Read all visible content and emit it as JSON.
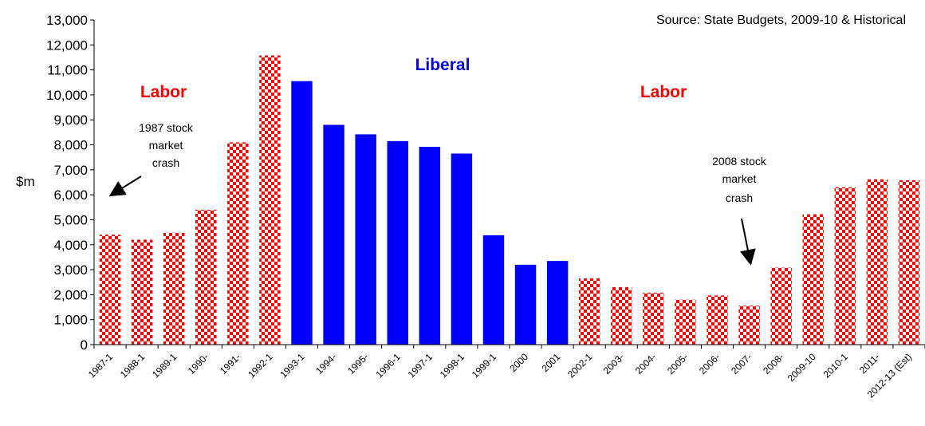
{
  "chart_data": {
    "type": "bar",
    "source": "Source: State Budgets, 2009-10 & Historical",
    "ylabel": "$m",
    "xlabel": "",
    "ylim": [
      0,
      13000
    ],
    "y_ticks": [
      "0",
      "1,000",
      "2,000",
      "3,000",
      "4,000",
      "5,000",
      "6,000",
      "7,000",
      "8,000",
      "9,000",
      "10,000",
      "11,000",
      "12,000",
      "13,000"
    ],
    "grid": false,
    "categories": [
      "1987-1",
      "1988-1",
      "1989-1",
      "1990-",
      "1991-",
      "1992-1",
      "1993-1",
      "1994-",
      "1995-",
      "1996-1",
      "1997-1",
      "1998-1",
      "1999-1",
      "2000",
      "2001",
      "2002-1",
      "2003-",
      "2004-",
      "2005-",
      "2006-",
      "2007-",
      "2008-",
      "2009-10",
      "2010-1",
      "2011-",
      "2012-13 (Est)"
    ],
    "values": [
      4400,
      4200,
      4480,
      5400,
      8100,
      11580,
      10550,
      8800,
      8420,
      8150,
      7920,
      7650,
      4380,
      3200,
      3350,
      2650,
      2300,
      2080,
      1800,
      1970,
      1560,
      3080,
      5220,
      6300,
      6620,
      6580
    ],
    "party": [
      "labor",
      "labor",
      "labor",
      "labor",
      "labor",
      "labor",
      "liberal",
      "liberal",
      "liberal",
      "liberal",
      "liberal",
      "liberal",
      "liberal",
      "liberal",
      "liberal",
      "labor",
      "labor",
      "labor",
      "labor",
      "labor",
      "labor",
      "labor",
      "labor",
      "labor",
      "labor",
      "labor"
    ],
    "colors": {
      "labor": "#ff0000",
      "liberal": "#0000ff"
    },
    "party_labels": [
      {
        "text": "Labor",
        "color": "#ff0000"
      },
      {
        "text": "Liberal",
        "color": "#0000ff"
      },
      {
        "text": "Labor",
        "color": "#ff0000"
      }
    ],
    "annotations": [
      {
        "lines": [
          "1987 stock",
          "market",
          "crash"
        ]
      },
      {
        "lines": [
          "2008 stock",
          "market",
          "crash"
        ]
      }
    ]
  }
}
